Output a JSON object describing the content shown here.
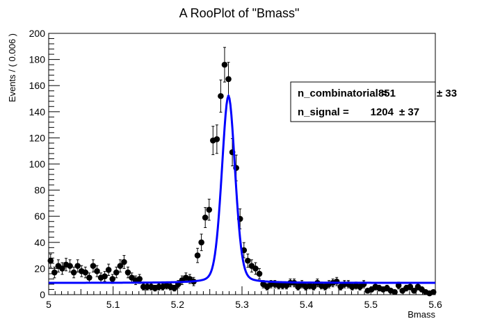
{
  "chart_data": {
    "type": "scatter",
    "title": "A RooPlot of \"Bmass\"",
    "xlabel": "Bmass",
    "ylabel": "Events / ( 0.006 )",
    "xlim": [
      5.0,
      5.6
    ],
    "ylim": [
      0,
      200
    ],
    "x_ticks": [
      "5",
      "5.1",
      "5.2",
      "5.3",
      "5.4",
      "5.5",
      "5.6"
    ],
    "y_ticks": [
      "0",
      "20",
      "40",
      "60",
      "80",
      "100",
      "120",
      "140",
      "160",
      "180",
      "200"
    ],
    "grid": false,
    "legend_box": {
      "position": "top-right",
      "entries": [
        {
          "label": "n_combinatorial =",
          "value": "851",
          "error": "± 33"
        },
        {
          "label": "n_signal =",
          "value": "1204",
          "error": "± 37"
        }
      ]
    },
    "series": [
      {
        "kind": "points_with_errors",
        "color": "#000000",
        "x": [
          5.003,
          5.009,
          5.015,
          5.021,
          5.027,
          5.033,
          5.039,
          5.045,
          5.051,
          5.057,
          5.063,
          5.069,
          5.075,
          5.081,
          5.087,
          5.093,
          5.099,
          5.105,
          5.111,
          5.117,
          5.123,
          5.129,
          5.135,
          5.141,
          5.147,
          5.153,
          5.159,
          5.165,
          5.171,
          5.177,
          5.183,
          5.189,
          5.195,
          5.201,
          5.207,
          5.213,
          5.219,
          5.225,
          5.231,
          5.237,
          5.243,
          5.249,
          5.255,
          5.261,
          5.267,
          5.273,
          5.279,
          5.285,
          5.291,
          5.297,
          5.303,
          5.309,
          5.315,
          5.321,
          5.327,
          5.333,
          5.339,
          5.345,
          5.351,
          5.357,
          5.363,
          5.369,
          5.375,
          5.381,
          5.387,
          5.393,
          5.399,
          5.405,
          5.411,
          5.417,
          5.423,
          5.429,
          5.435,
          5.441,
          5.447,
          5.453,
          5.459,
          5.465,
          5.471,
          5.477,
          5.483,
          5.489,
          5.495,
          5.501,
          5.507,
          5.513,
          5.519,
          5.525,
          5.531,
          5.537,
          5.543,
          5.549,
          5.555,
          5.561,
          5.567,
          5.573,
          5.579,
          5.585,
          5.591,
          5.597
        ],
        "y": [
          26,
          17,
          22,
          20,
          23,
          22,
          17,
          22,
          18,
          17,
          13,
          22,
          18,
          13,
          14,
          19,
          12,
          17,
          22,
          25,
          17,
          13,
          11,
          12,
          6,
          6,
          6,
          5,
          6,
          6,
          7,
          6,
          5,
          8,
          11,
          13,
          12,
          10,
          30,
          40,
          59,
          65,
          118,
          119,
          152,
          176,
          165,
          109,
          97,
          58,
          34,
          26,
          22,
          20,
          16,
          8,
          6,
          8,
          8,
          7,
          7,
          7,
          9,
          9,
          6,
          8,
          6,
          7,
          6,
          9,
          7,
          6,
          8,
          9,
          10,
          6,
          8,
          8,
          6,
          7,
          6,
          8,
          3,
          4,
          6,
          5,
          4,
          5,
          3,
          2,
          7,
          3,
          5,
          6,
          3,
          6,
          4,
          2,
          1,
          2
        ]
      },
      {
        "kind": "fit_curve",
        "color": "#0000ff",
        "peak_mean": 5.279,
        "peak_height": 152,
        "background_level": 9
      }
    ]
  }
}
